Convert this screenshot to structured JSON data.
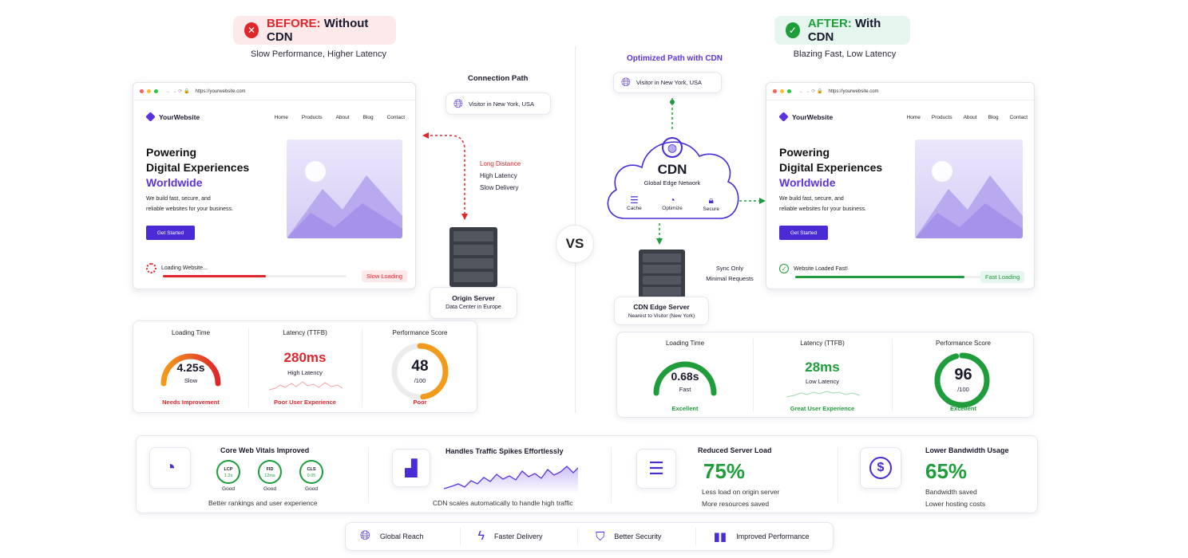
{
  "before": {
    "title_prefix": "BEFORE:",
    "title_rest": "Without CDN",
    "subtitle": "Slow Performance, Higher Latency",
    "connection_path_label": "Connection Path",
    "visitor": "Visitor in New York, USA",
    "long_distance": "Long Distance",
    "high_latency": "High Latency",
    "slow_delivery": "Slow Delivery",
    "server_name": "Origin Server",
    "server_sub": "Data Center in Europe",
    "loading_text": "Loading Website...",
    "status_tag": "Slow Loading",
    "progress": 0.56,
    "metrics": {
      "loading_title": "Loading Time",
      "loading_value": "4.25s",
      "loading_sub": "Slow",
      "loading_foot": "Needs Improvement",
      "latency_title": "Latency (TTFB)",
      "latency_value": "280ms",
      "latency_sub": "High Latency",
      "latency_foot": "Poor User Experience",
      "score_title": "Performance Score",
      "score_value": "48",
      "score_sub": "/100",
      "score_foot": "Poor",
      "score_fraction": 0.48
    }
  },
  "after": {
    "title_prefix": "AFTER:",
    "title_rest": "With CDN",
    "subtitle": "Blazing Fast, Low Latency",
    "optimized_label": "Optimized Path with CDN",
    "visitor": "Visitor in New York, USA",
    "cdn_title": "CDN",
    "cdn_sub": "Global Edge Network",
    "cdn_items": [
      "Cache",
      "Optimize",
      "Secure"
    ],
    "sync_only": "Sync Only",
    "minimal_requests": "Minimal Requests",
    "server_name": "CDN Edge Server",
    "server_sub": "Nearest to Visitor (New York)",
    "loading_text": "Website Loaded Fast!",
    "status_tag": "Fast Loading",
    "progress": 0.9,
    "metrics": {
      "loading_title": "Loading Time",
      "loading_value": "0.68s",
      "loading_sub": "Fast",
      "loading_foot": "Excellent",
      "latency_title": "Latency (TTFB)",
      "latency_value": "28ms",
      "latency_sub": "Low Latency",
      "latency_foot": "Great User Experience",
      "score_title": "Performance Score",
      "score_value": "96",
      "score_sub": "/100",
      "score_foot": "Excellent",
      "score_fraction": 0.96
    }
  },
  "vs": "VS",
  "site": {
    "url": "https://yourwebsite.com",
    "brand": "YourWebsite",
    "nav": [
      "Home",
      "Products",
      "About",
      "Blog",
      "Contact"
    ],
    "headline1": "Powering",
    "headline2": "Digital Experiences",
    "headline3": "Worldwide",
    "body1": "We build fast, secure, and",
    "body2": "reliable websites for your business.",
    "cta": "Get Started"
  },
  "features": {
    "cwv_title": "Core Web Vitals Improved",
    "cwv": [
      {
        "name": "LCP",
        "value": "1.2s",
        "rating": "Good"
      },
      {
        "name": "FID",
        "value": "12ms",
        "rating": "Good"
      },
      {
        "name": "CLS",
        "value": "0.05",
        "rating": "Good"
      }
    ],
    "cwv_foot": "Better rankings and user experience",
    "traffic_title": "Handles Traffic Spikes Effortlessly",
    "traffic_foot": "CDN scales automatically to handle high traffic",
    "load_title": "Reduced Server Load",
    "load_value": "75%",
    "load_line1": "Less load on origin server",
    "load_line2": "More resources saved",
    "bw_title": "Lower Bandwidth Usage",
    "bw_value": "65%",
    "bw_line1": "Bandwidth saved",
    "bw_line2": "Lower hosting costs"
  },
  "benefits": [
    "Global Reach",
    "Faster Delivery",
    "Better Security",
    "Improved Performance"
  ],
  "colors": {
    "red": "#e0262b",
    "green": "#1f9d3a",
    "purple": "#5b32e0",
    "orange": "#f29a1c"
  }
}
